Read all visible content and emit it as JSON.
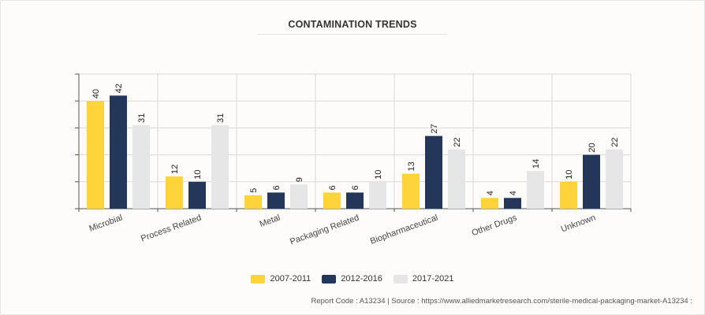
{
  "chart_data": {
    "type": "bar",
    "title": "CONTAMINATION TRENDS",
    "categories": [
      "Microbial",
      "Process Related",
      "Metal",
      "Packaging Related",
      "Biopharmaceutical",
      "Other Drugs",
      "Unknown"
    ],
    "series": [
      {
        "name": "2007-2011",
        "color": "#ffd43b",
        "values": [
          40,
          12,
          5,
          6,
          13,
          4,
          10
        ]
      },
      {
        "name": "2012-2016",
        "color": "#24375a",
        "values": [
          42,
          10,
          6,
          6,
          27,
          4,
          20
        ]
      },
      {
        "name": "2017-2021",
        "color": "#e6e6e6",
        "values": [
          31,
          31,
          9,
          10,
          22,
          14,
          22
        ]
      }
    ],
    "ylim": [
      0,
      50
    ],
    "ytick_step": 10,
    "grid": true,
    "legend_position": "bottom-center",
    "xlabel": "",
    "ylabel": ""
  },
  "footer": {
    "text": "Report Code : A13234  |  Source : https://www.alliedmarketresearch.com/sterile-medical-packaging-market-A13234 :"
  }
}
